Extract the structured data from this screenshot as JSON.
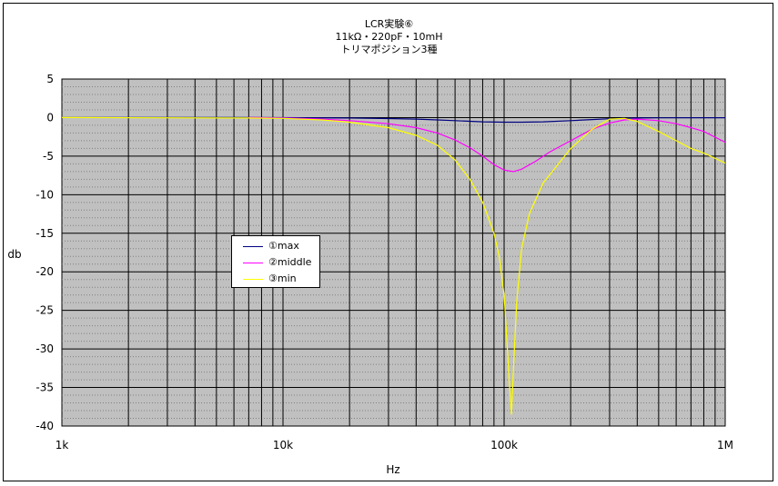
{
  "chart_data": {
    "type": "line",
    "title": [
      "LCR実験⑥",
      "11kΩ・220pF・10mH",
      "トリマポジション3種"
    ],
    "xlabel": "Hz",
    "ylabel": "db",
    "xscale": "log",
    "xlim": [
      1000,
      1000000
    ],
    "ylim": [
      -40,
      5
    ],
    "xticks": [
      {
        "value": 1000,
        "label": "1k"
      },
      {
        "value": 10000,
        "label": "10k"
      },
      {
        "value": 100000,
        "label": "100k"
      },
      {
        "value": 1000000,
        "label": "1M"
      }
    ],
    "yticks": [
      5,
      0,
      -5,
      -10,
      -15,
      -20,
      -25,
      -30,
      -35,
      -40
    ],
    "grid": true,
    "legend_position": "middle-left",
    "background": "#c0c0c0",
    "series": [
      {
        "name": "①max",
        "color": "#000080",
        "x": [
          1000,
          7000,
          12000,
          20000,
          30000,
          40000,
          50000,
          60000,
          70000,
          80000,
          100000,
          120000,
          150000,
          200000,
          250000,
          300000,
          400000,
          500000,
          700000,
          1000000
        ],
        "y": [
          0,
          0,
          -0.02,
          -0.05,
          -0.12,
          -0.2,
          -0.3,
          -0.4,
          -0.48,
          -0.55,
          -0.6,
          -0.6,
          -0.55,
          -0.4,
          -0.25,
          -0.15,
          -0.05,
          -0.03,
          -0.02,
          -0.02
        ]
      },
      {
        "name": "②middle",
        "color": "#ff00ff",
        "x": [
          7000,
          10000,
          15000,
          20000,
          30000,
          40000,
          50000,
          60000,
          70000,
          80000,
          90000,
          100000,
          110000,
          120000,
          140000,
          160000,
          200000,
          250000,
          300000,
          350000,
          400000,
          500000,
          600000,
          700000,
          800000,
          1000000
        ],
        "y": [
          0,
          -0.05,
          -0.2,
          -0.4,
          -0.8,
          -1.3,
          -2.0,
          -2.9,
          -3.9,
          -5.0,
          -6.1,
          -6.8,
          -7.0,
          -6.7,
          -5.6,
          -4.5,
          -3.0,
          -1.5,
          -0.7,
          -0.3,
          -0.2,
          -0.4,
          -0.8,
          -1.3,
          -1.8,
          -3.2
        ]
      },
      {
        "name": "③min",
        "color": "#ffff00",
        "x": [
          1000,
          7000,
          10000,
          15000,
          20000,
          30000,
          40000,
          50000,
          60000,
          70000,
          80000,
          90000,
          95000,
          100000,
          103000,
          106000,
          108000,
          110000,
          114000,
          120000,
          130000,
          150000,
          200000,
          250000,
          300000,
          350000,
          400000,
          500000,
          600000,
          700000,
          800000,
          1000000
        ],
        "y": [
          0,
          -0.05,
          -0.1,
          -0.3,
          -0.6,
          -1.3,
          -2.3,
          -3.6,
          -5.5,
          -8.0,
          -11.0,
          -15.0,
          -18.0,
          -23.0,
          -29.0,
          -35.0,
          -38.5,
          -33.0,
          -24.0,
          -17.0,
          -12.5,
          -8.5,
          -4.0,
          -1.5,
          -0.2,
          -0.1,
          -0.5,
          -1.8,
          -3.0,
          -4.0,
          -4.6,
          -5.9
        ]
      }
    ]
  }
}
